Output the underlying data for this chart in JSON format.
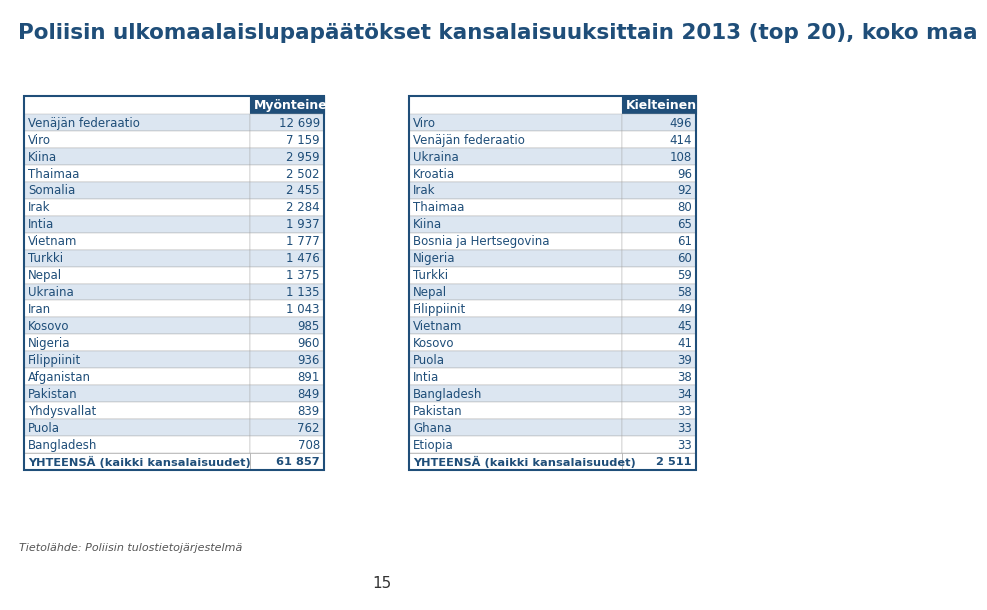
{
  "title": "Poliisin ulkomaalaislupapäätökset kansalaisuuksittain 2013 (top 20), koko maa",
  "left_header": "Myönteinen",
  "right_header": "Kielteinen",
  "left_rows": [
    [
      "Venäjän federaatio",
      "12 699"
    ],
    [
      "Viro",
      "7 159"
    ],
    [
      "Kiina",
      "2 959"
    ],
    [
      "Thaimaa",
      "2 502"
    ],
    [
      "Somalia",
      "2 455"
    ],
    [
      "Irak",
      "2 284"
    ],
    [
      "Intia",
      "1 937"
    ],
    [
      "Vietnam",
      "1 777"
    ],
    [
      "Turkki",
      "1 476"
    ],
    [
      "Nepal",
      "1 375"
    ],
    [
      "Ukraina",
      "1 135"
    ],
    [
      "Iran",
      "1 043"
    ],
    [
      "Kosovo",
      "985"
    ],
    [
      "Nigeria",
      "960"
    ],
    [
      "Filippiinit",
      "936"
    ],
    [
      "Afganistan",
      "891"
    ],
    [
      "Pakistan",
      "849"
    ],
    [
      "Yhdysvallat",
      "839"
    ],
    [
      "Puola",
      "762"
    ],
    [
      "Bangladesh",
      "708"
    ]
  ],
  "right_rows": [
    [
      "Viro",
      "496"
    ],
    [
      "Venäjän federaatio",
      "414"
    ],
    [
      "Ukraina",
      "108"
    ],
    [
      "Kroatia",
      "96"
    ],
    [
      "Irak",
      "92"
    ],
    [
      "Thaimaa",
      "80"
    ],
    [
      "Kiina",
      "65"
    ],
    [
      "Bosnia ja Hertsegovina",
      "61"
    ],
    [
      "Nigeria",
      "60"
    ],
    [
      "Turkki",
      "59"
    ],
    [
      "Nepal",
      "58"
    ],
    [
      "Filippiinit",
      "49"
    ],
    [
      "Vietnam",
      "45"
    ],
    [
      "Kosovo",
      "41"
    ],
    [
      "Puola",
      "39"
    ],
    [
      "Intia",
      "38"
    ],
    [
      "Bangladesh",
      "34"
    ],
    [
      "Pakistan",
      "33"
    ],
    [
      "Ghana",
      "33"
    ],
    [
      "Etiopia",
      "33"
    ]
  ],
  "left_total_label": "YHTEENSÄ (kaikki kansalaisuudet)",
  "left_total_value": "61 857",
  "right_total_label": "YHTEENSÄ (kaikki kansalaisuudet)",
  "right_total_value": "2 511",
  "footer": "Tietolähde: Poliisin tulostietojärjestelmä",
  "page_number": "15",
  "header_bg": "#1F4E79",
  "header_text": "#FFFFFF",
  "row_bg_even": "#DCE6F1",
  "row_bg_odd": "#FFFFFF",
  "border_color": "#1F4E79",
  "text_color": "#1F4E79",
  "title_color": "#1F4E79"
}
